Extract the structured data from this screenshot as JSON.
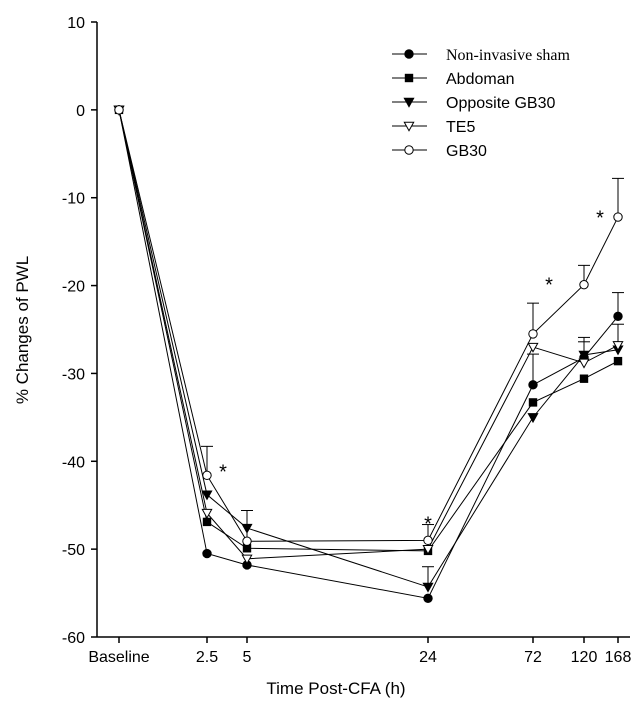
{
  "chart_data": {
    "type": "line",
    "title": "",
    "xlabel": "Time Post-CFA (h)",
    "ylabel": "% Changes of PWL",
    "categories": [
      "Baseline",
      "2.5",
      "5",
      "24",
      "72",
      "120",
      "168"
    ],
    "ylim": [
      -60,
      10
    ],
    "yticks": [
      -60,
      -50,
      -40,
      -30,
      -20,
      -10,
      0,
      10
    ],
    "grid": false,
    "legend_position": "top-right",
    "series": [
      {
        "name": "Non-invasive sham",
        "marker": "circle-filled",
        "values": [
          0,
          -50.5,
          -51.8,
          -55.6,
          -31.3,
          -28.2,
          -23.5
        ],
        "errors": [
          0,
          0,
          0,
          0,
          3.5,
          2.3,
          2.7
        ]
      },
      {
        "name": "Abdoman",
        "marker": "square-filled",
        "values": [
          0,
          -46.9,
          -49.9,
          -50.2,
          -33.3,
          -30.6,
          -28.6
        ],
        "errors": [
          0,
          0,
          0,
          0,
          0,
          0,
          0
        ]
      },
      {
        "name": "Opposite GB30",
        "marker": "triangle-down-filled",
        "values": [
          0,
          -43.8,
          -47.6,
          -54.3,
          -35.0,
          -27.9,
          -27.3
        ],
        "errors": [
          0,
          0,
          2.0,
          2.3,
          0,
          0,
          0
        ]
      },
      {
        "name": "TE5",
        "marker": "triangle-down-open",
        "values": [
          0,
          -45.9,
          -51.1,
          -50.0,
          -27.0,
          -28.8,
          -26.8
        ],
        "errors": [
          0,
          0,
          0,
          0,
          0,
          2.4,
          2.4
        ]
      },
      {
        "name": "GB30",
        "marker": "circle-open",
        "values": [
          0,
          -41.6,
          -49.1,
          -49.0,
          -25.5,
          -19.9,
          -12.2
        ],
        "errors": [
          0,
          3.3,
          3.5,
          1.8,
          3.5,
          2.2,
          4.4
        ]
      }
    ],
    "annotations": [
      {
        "text": "*",
        "category": "2.5",
        "y": -40.7,
        "offset": "right"
      },
      {
        "text": "*",
        "category": "24",
        "y": -46.6
      },
      {
        "text": "*",
        "category": "72",
        "y": -19.4,
        "offset": "right"
      },
      {
        "text": "*",
        "category": "120",
        "y": -11.8,
        "offset": "right"
      }
    ]
  }
}
